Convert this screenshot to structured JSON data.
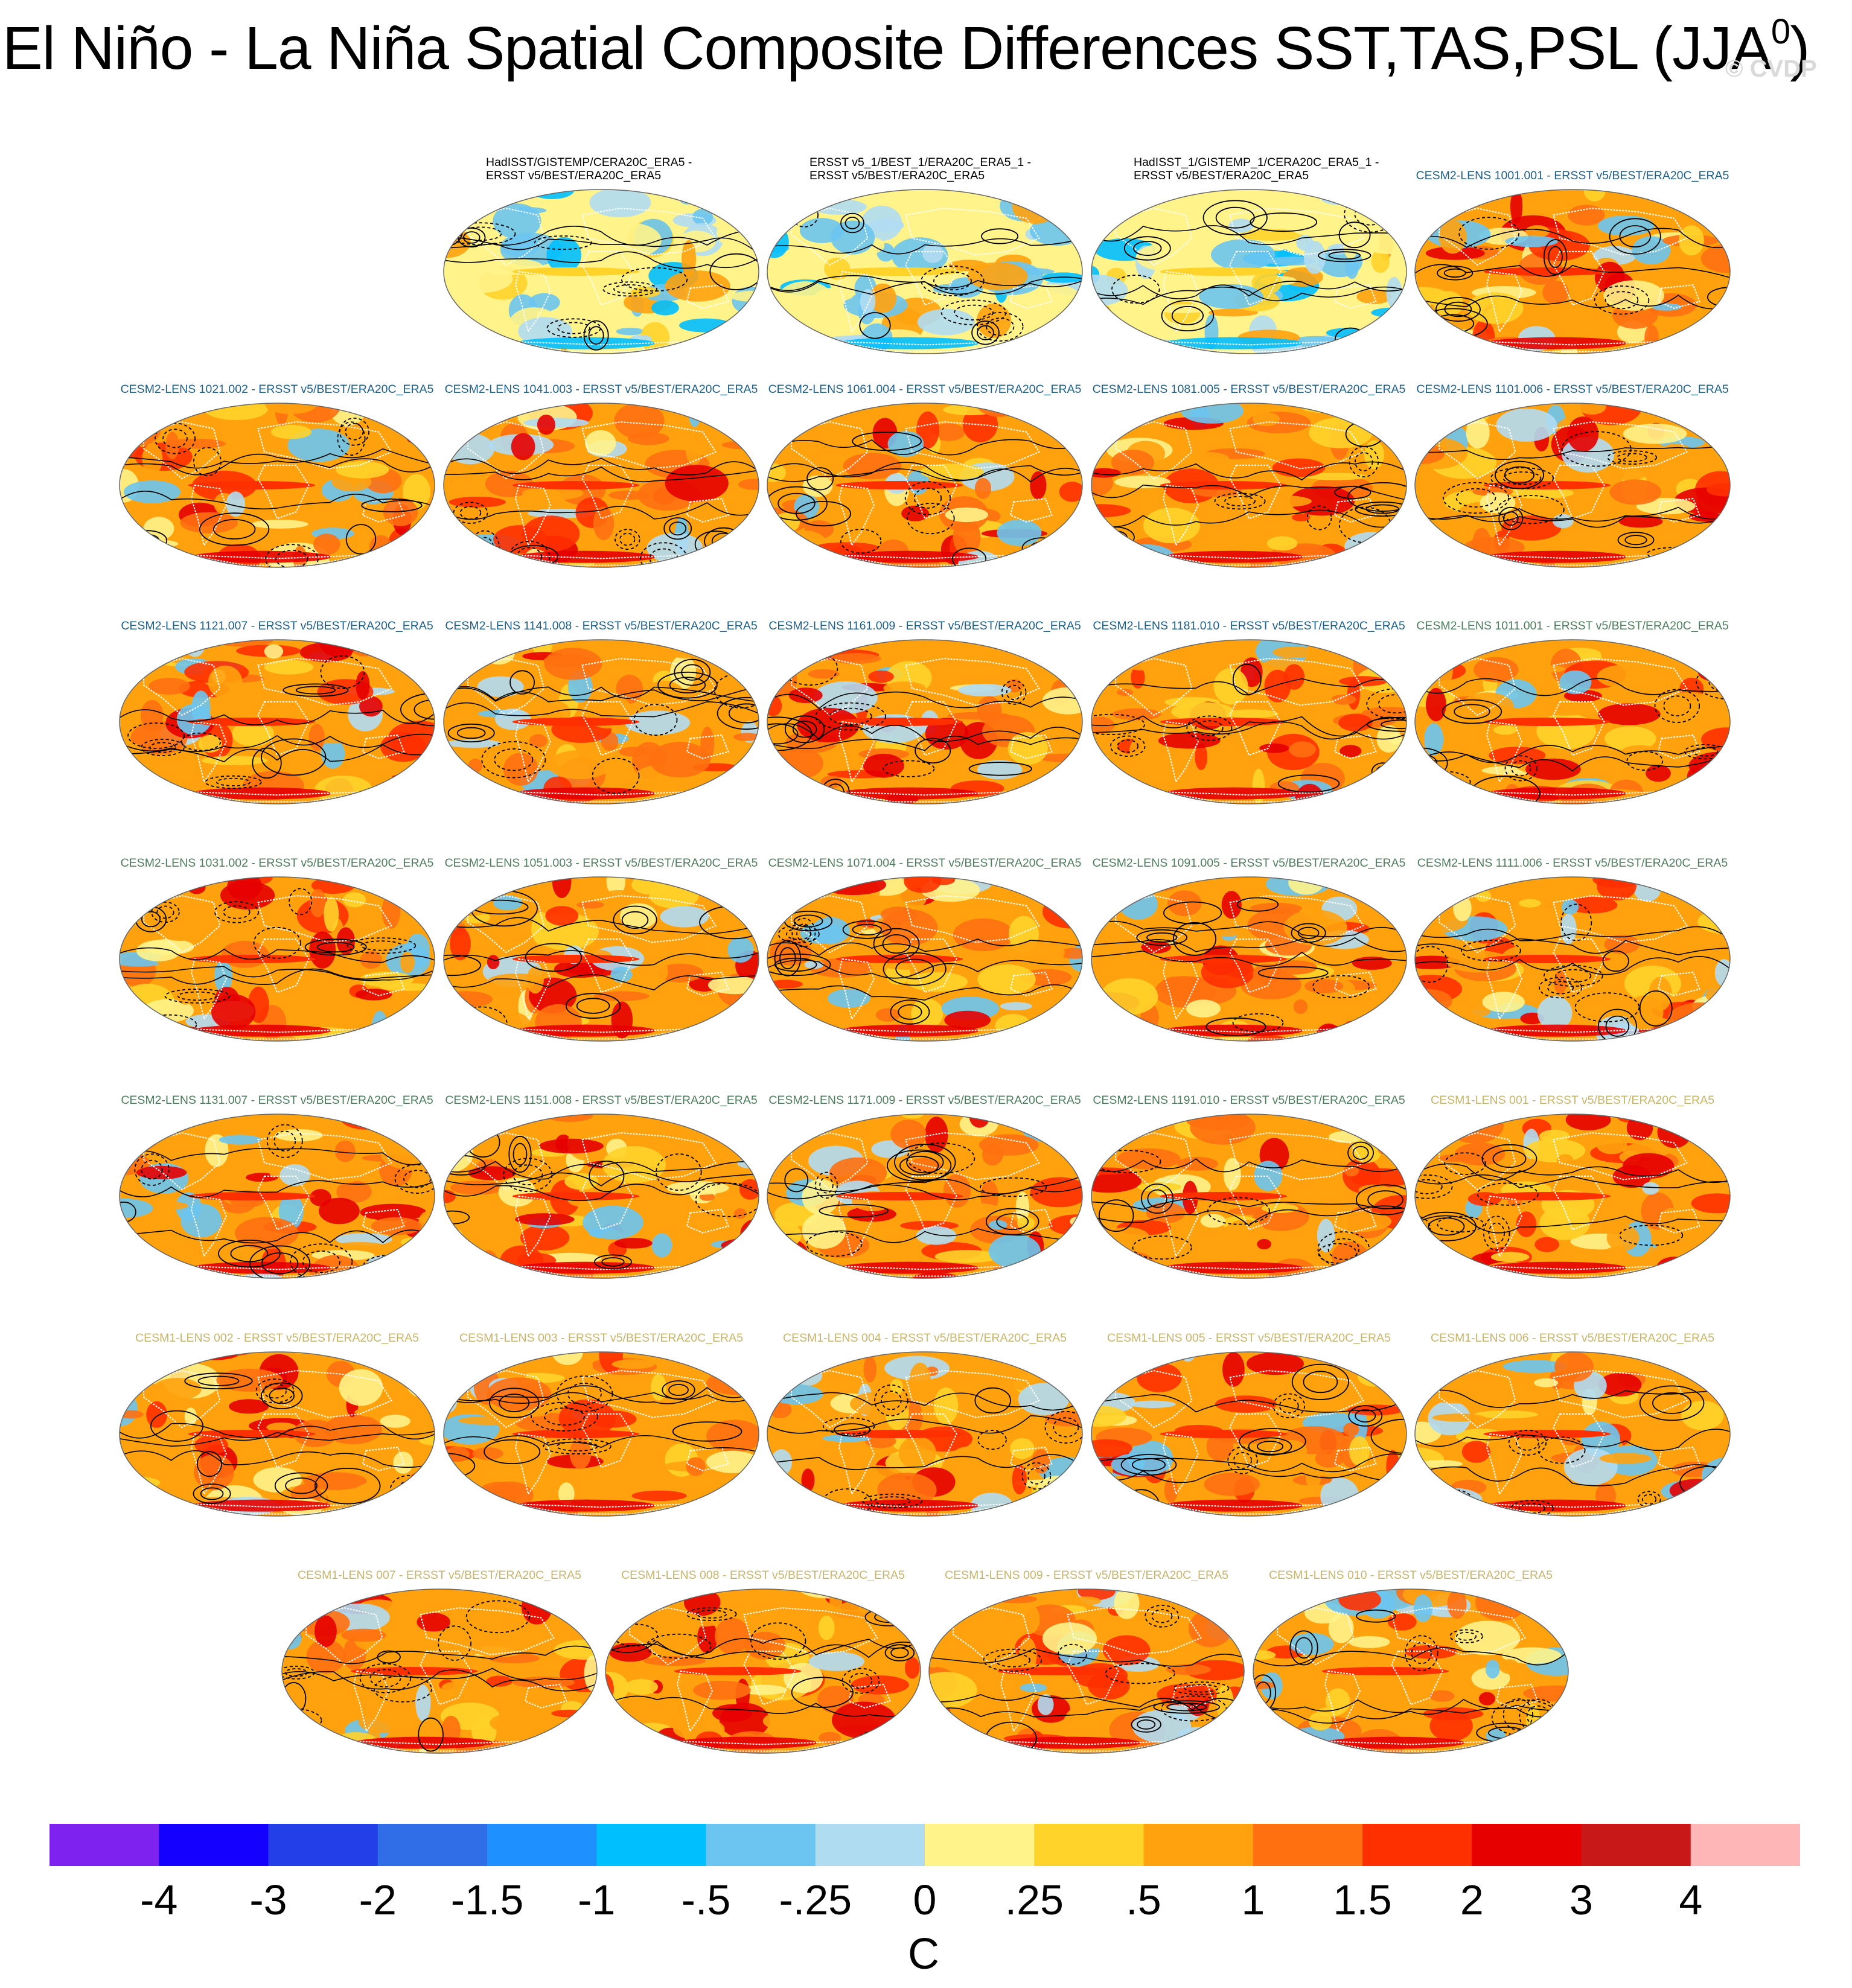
{
  "header": {
    "title": "El Niño - La Niña Spatial Composite Differences SST,TAS,PSL (JJA",
    "title_sup": "0",
    "title_close": ")",
    "watermark": "© CVDP"
  },
  "chart_data": {
    "type": "heatmap",
    "projection": "robinson",
    "panel_rows": [
      [
        {
          "label": [
            "HadISST/GISTEMP/CERA20C_ERA5 -",
            "ERSST v5/BEST/ERA20C_ERA5"
          ],
          "color": "#000000"
        },
        {
          "label": [
            "ERSST v5_1/BEST_1/ERA20C_ERA5_1 -",
            "ERSST v5/BEST/ERA20C_ERA5"
          ],
          "color": "#000000"
        },
        {
          "label": [
            "HadISST_1/GISTEMP_1/CERA20C_ERA5_1 -",
            "ERSST v5/BEST/ERA20C_ERA5"
          ],
          "color": "#000000"
        },
        {
          "label": [
            "CESM2-LENS 1001.001 - ERSST v5/BEST/ERA20C_ERA5"
          ],
          "color": "#1f5f8b"
        }
      ],
      [
        {
          "label": [
            "CESM2-LENS 1021.002 - ERSST v5/BEST/ERA20C_ERA5"
          ],
          "color": "#1f5f8b"
        },
        {
          "label": [
            "CESM2-LENS 1041.003 - ERSST v5/BEST/ERA20C_ERA5"
          ],
          "color": "#1f5f8b"
        },
        {
          "label": [
            "CESM2-LENS 1061.004 - ERSST v5/BEST/ERA20C_ERA5"
          ],
          "color": "#1f5f8b"
        },
        {
          "label": [
            "CESM2-LENS 1081.005 - ERSST v5/BEST/ERA20C_ERA5"
          ],
          "color": "#1f5f8b"
        },
        {
          "label": [
            "CESM2-LENS 1101.006 - ERSST v5/BEST/ERA20C_ERA5"
          ],
          "color": "#1f5f8b"
        }
      ],
      [
        {
          "label": [
            "CESM2-LENS 1121.007 - ERSST v5/BEST/ERA20C_ERA5"
          ],
          "color": "#1f5f8b"
        },
        {
          "label": [
            "CESM2-LENS 1141.008 - ERSST v5/BEST/ERA20C_ERA5"
          ],
          "color": "#1f5f8b"
        },
        {
          "label": [
            "CESM2-LENS 1161.009 - ERSST v5/BEST/ERA20C_ERA5"
          ],
          "color": "#1f5f8b"
        },
        {
          "label": [
            "CESM2-LENS 1181.010 - ERSST v5/BEST/ERA20C_ERA5"
          ],
          "color": "#1f5f8b"
        },
        {
          "label": [
            "CESM2-LENS 1011.001 - ERSST v5/BEST/ERA20C_ERA5"
          ],
          "color": "#4d7d5e"
        }
      ],
      [
        {
          "label": [
            "CESM2-LENS 1031.002 - ERSST v5/BEST/ERA20C_ERA5"
          ],
          "color": "#4d7d5e"
        },
        {
          "label": [
            "CESM2-LENS 1051.003 - ERSST v5/BEST/ERA20C_ERA5"
          ],
          "color": "#4d7d5e"
        },
        {
          "label": [
            "CESM2-LENS 1071.004 - ERSST v5/BEST/ERA20C_ERA5"
          ],
          "color": "#4d7d5e"
        },
        {
          "label": [
            "CESM2-LENS 1091.005 - ERSST v5/BEST/ERA20C_ERA5"
          ],
          "color": "#4d7d5e"
        },
        {
          "label": [
            "CESM2-LENS 1111.006 - ERSST v5/BEST/ERA20C_ERA5"
          ],
          "color": "#4d7d5e"
        }
      ],
      [
        {
          "label": [
            "CESM2-LENS 1131.007 - ERSST v5/BEST/ERA20C_ERA5"
          ],
          "color": "#4d7d5e"
        },
        {
          "label": [
            "CESM2-LENS 1151.008 - ERSST v5/BEST/ERA20C_ERA5"
          ],
          "color": "#4d7d5e"
        },
        {
          "label": [
            "CESM2-LENS 1171.009 - ERSST v5/BEST/ERA20C_ERA5"
          ],
          "color": "#4d7d5e"
        },
        {
          "label": [
            "CESM2-LENS 1191.010 - ERSST v5/BEST/ERA20C_ERA5"
          ],
          "color": "#4d7d5e"
        },
        {
          "label": [
            "CESM1-LENS 001 - ERSST v5/BEST/ERA20C_ERA5"
          ],
          "color": "#c8b46a"
        }
      ],
      [
        {
          "label": [
            "CESM1-LENS 002 - ERSST v5/BEST/ERA20C_ERA5"
          ],
          "color": "#c8b46a"
        },
        {
          "label": [
            "CESM1-LENS 003 - ERSST v5/BEST/ERA20C_ERA5"
          ],
          "color": "#c8b46a"
        },
        {
          "label": [
            "CESM1-LENS 004 - ERSST v5/BEST/ERA20C_ERA5"
          ],
          "color": "#c8b46a"
        },
        {
          "label": [
            "CESM1-LENS 005 - ERSST v5/BEST/ERA20C_ERA5"
          ],
          "color": "#c8b46a"
        },
        {
          "label": [
            "CESM1-LENS 006 - ERSST v5/BEST/ERA20C_ERA5"
          ],
          "color": "#c8b46a"
        }
      ],
      [
        {
          "label": [
            "CESM1-LENS 007 - ERSST v5/BEST/ERA20C_ERA5"
          ],
          "color": "#c8b46a"
        },
        {
          "label": [
            "CESM1-LENS 008 - ERSST v5/BEST/ERA20C_ERA5"
          ],
          "color": "#c8b46a"
        },
        {
          "label": [
            "CESM1-LENS 009 - ERSST v5/BEST/ERA20C_ERA5"
          ],
          "color": "#c8b46a"
        },
        {
          "label": [
            "CESM1-LENS 010 - ERSST v5/BEST/ERA20C_ERA5"
          ],
          "color": "#c8b46a"
        }
      ]
    ],
    "colorbar": {
      "colors": [
        "#7e22f0",
        "#1400ff",
        "#2340e8",
        "#2f6ee6",
        "#1e90ff",
        "#00bfff",
        "#6cc5f0",
        "#b0dcf2",
        "#fff38a",
        "#ffd32a",
        "#ffa20e",
        "#ff7010",
        "#ff3000",
        "#e60000",
        "#c81818",
        "#ffb6b6"
      ],
      "tick_labels": [
        "-4",
        "-3",
        "-2",
        "-1.5",
        "-1",
        "-.5",
        "-.25",
        "0",
        ".25",
        ".5",
        "1",
        "1.5",
        "2",
        "3",
        "4"
      ],
      "unit": "C"
    }
  }
}
